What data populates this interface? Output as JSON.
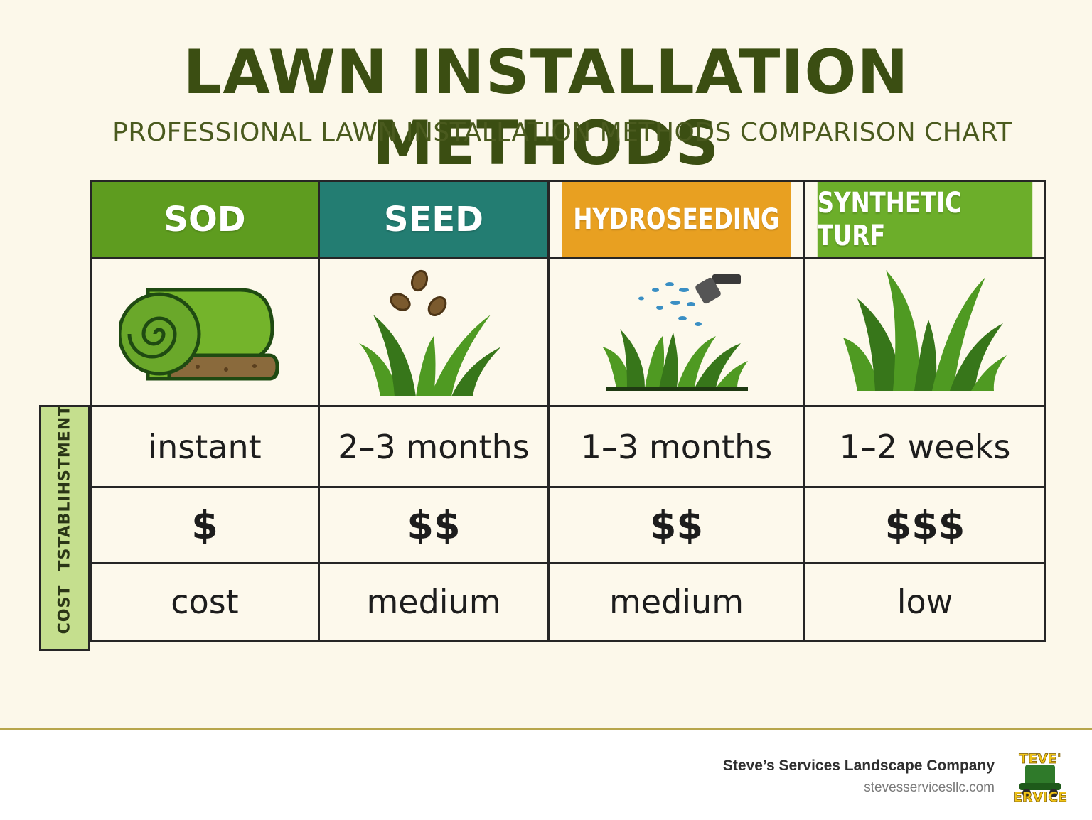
{
  "header": {
    "title": "LAWN INSTALLATION METHODS",
    "subtitle": "PROFESSIONAL LAWN INSTALLATION METHODS COMPARISON CHART"
  },
  "columns": [
    {
      "name": "SOD",
      "color": "#5e9c1f",
      "icon": "sod-roll-icon",
      "establishment": "instant",
      "price": "$",
      "cost": "cost"
    },
    {
      "name": "SEED",
      "color": "#237d72",
      "icon": "seed-grass-icon",
      "establishment": "2–3 months",
      "price": "$$",
      "cost": "medium"
    },
    {
      "name": "HYDROSEEDING",
      "color": "#e8a021",
      "icon": "hydroseed-spray-icon",
      "establishment": "1–3 months",
      "price": "$$",
      "cost": "medium"
    },
    {
      "name": "SYNTHETIC TURF",
      "color": "#6cae2a",
      "icon": "synthetic-grass-icon",
      "establishment": "1–2 weeks",
      "price": "$$$",
      "cost": "low"
    }
  ],
  "side": {
    "top_label": "TSTABLIHSTMENT",
    "bottom_label": "COST",
    "color": "#c5df8e"
  },
  "footer": {
    "company": "Steve’s Services Landscape Company",
    "website": "stevesservicesllc.com",
    "logo_top_text": "TEVE'",
    "logo_bottom_text": "ERVICE"
  },
  "colors": {
    "background": "#fcf8ea",
    "title": "#3b4e12",
    "grass": "#4f9a22",
    "grass_dark": "#37761a"
  }
}
